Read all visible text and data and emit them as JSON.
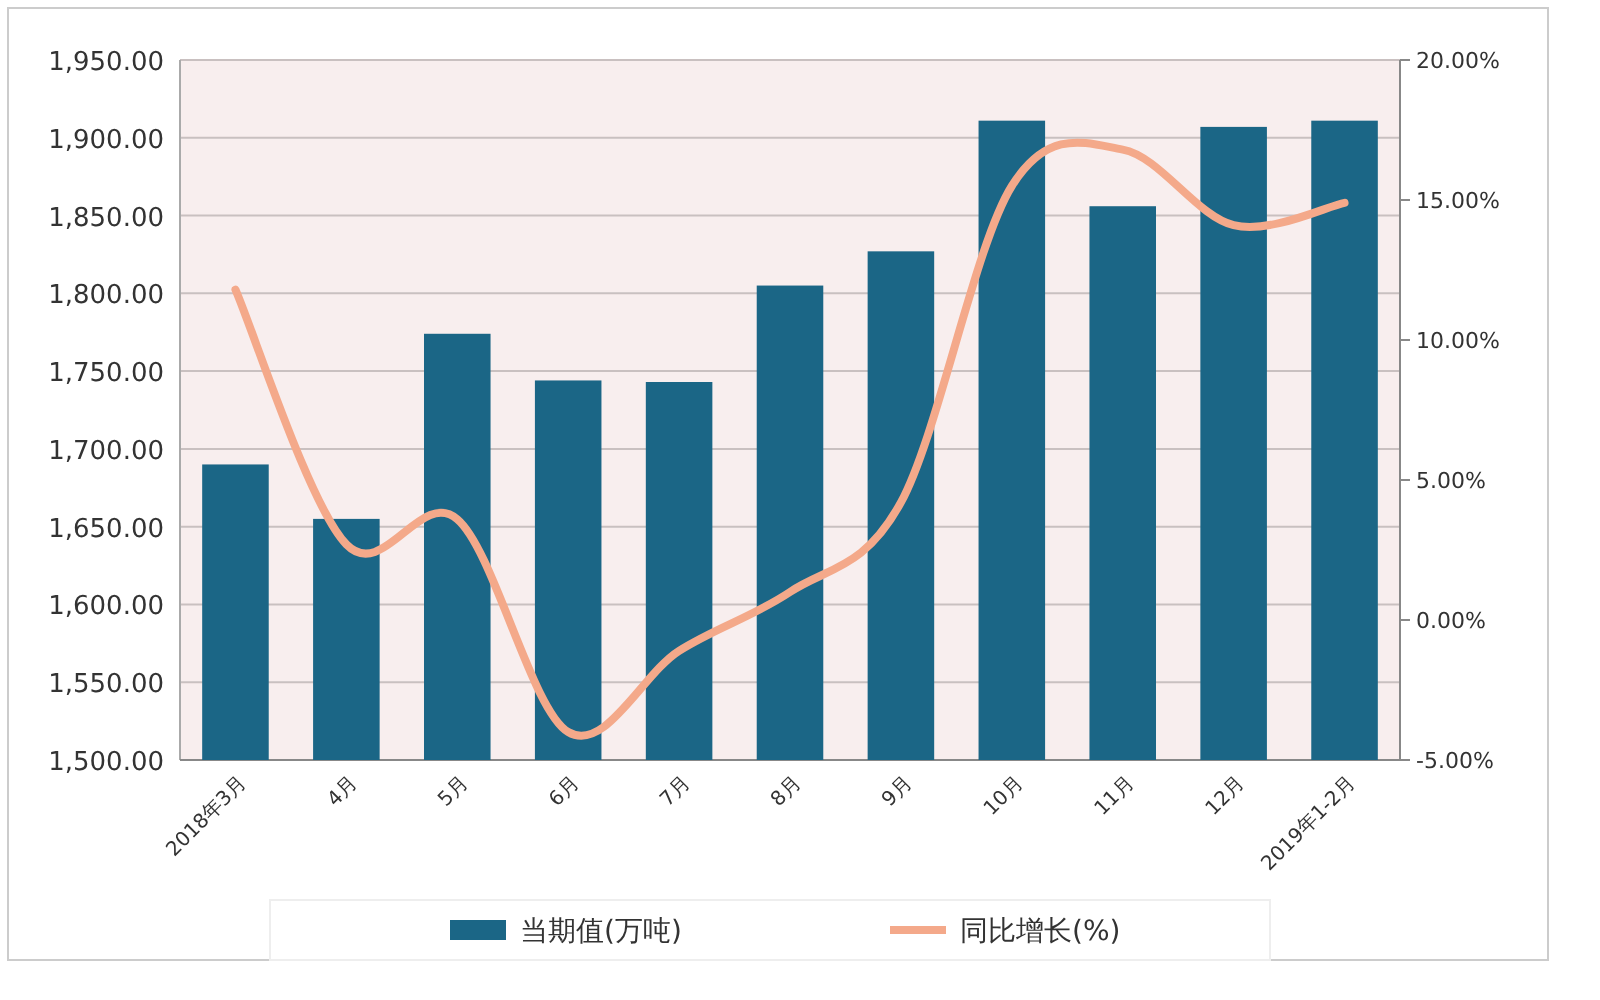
{
  "chart_data": {
    "type": "bar",
    "categories": [
      "2018年3月",
      "4月",
      "5月",
      "6月",
      "7月",
      "8月",
      "9月",
      "10月",
      "11月",
      "12月",
      "2019年1-2月"
    ],
    "series": [
      {
        "name": "当期值(万吨)",
        "color": "#1b6686",
        "values": [
          1690,
          1655,
          1774,
          1744,
          1743,
          1805,
          1827,
          1911,
          1856,
          1907,
          1911
        ]
      },
      {
        "name": "同比增长(%)",
        "type": "line",
        "axis": "y2",
        "color": "#f4a98a",
        "values": [
          11.8,
          2.7,
          3.6,
          -4.0,
          -1.1,
          1.0,
          4.2,
          15.5,
          16.8,
          14.1,
          14.9
        ]
      }
    ],
    "ylim": [
      1500,
      1950
    ],
    "yticks": [
      {
        "value": 1500,
        "label": "1,500.00"
      },
      {
        "value": 1550,
        "label": "1,550.00"
      },
      {
        "value": 1600,
        "label": "1,600.00"
      },
      {
        "value": 1650,
        "label": "1,650.00"
      },
      {
        "value": 1700,
        "label": "1,700.00"
      },
      {
        "value": 1750,
        "label": "1,750.00"
      },
      {
        "value": 1800,
        "label": "1,800.00"
      },
      {
        "value": 1850,
        "label": "1,850.00"
      },
      {
        "value": 1900,
        "label": "1,900.00"
      },
      {
        "value": 1950,
        "label": "1,950.00"
      }
    ],
    "y2lim": [
      -5,
      20
    ],
    "y2ticks": [
      {
        "value": -5,
        "label": "-5.00%"
      },
      {
        "value": 0,
        "label": "0.00%"
      },
      {
        "value": 5,
        "label": "5.00%"
      },
      {
        "value": 10,
        "label": "10.00%"
      },
      {
        "value": 15,
        "label": "15.00%"
      },
      {
        "value": 20,
        "label": "20.00%"
      }
    ],
    "grid": "y",
    "legend": "bottom"
  }
}
